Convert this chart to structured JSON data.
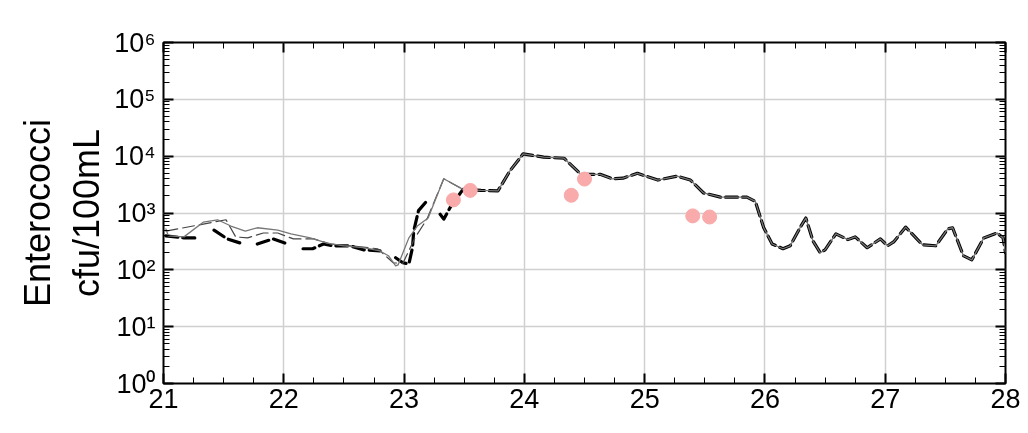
{
  "chart_data": {
    "type": "line",
    "ylabel": "Enterococci\ncfu/100mL",
    "log": "y",
    "grid": true,
    "xlim": [
      21,
      28
    ],
    "xticks": [
      21,
      22,
      23,
      24,
      25,
      26,
      27,
      28
    ],
    "ylim": [
      1,
      1000000
    ],
    "yticks": [
      {
        "value": 1,
        "label": "10⁰"
      },
      {
        "value": 10,
        "label": "10¹"
      },
      {
        "value": 100,
        "label": "10²"
      },
      {
        "value": 1000,
        "label": "10³"
      },
      {
        "value": 10000,
        "label": "10⁴"
      },
      {
        "value": 100000,
        "label": "10⁵"
      },
      {
        "value": 1000000,
        "label": "10⁶"
      }
    ],
    "series": [
      {
        "color": "#000000",
        "line_style": "dashed",
        "x": [
          21.02,
          21.17,
          21.29,
          21.35,
          21.42,
          21.53,
          21.64,
          21.71,
          21.78,
          21.91,
          22.03,
          22.1,
          22.16,
          22.24,
          22.33,
          22.41,
          22.55,
          22.66,
          22.8,
          22.86,
          22.93,
          22.99,
          23.04,
          23.07,
          23.08,
          23.12,
          23.18,
          23.25,
          23.3,
          23.33,
          23.39,
          23.49,
          23.64,
          23.78,
          23.88,
          23.99,
          24.16,
          24.33,
          24.47,
          24.63,
          24.73,
          24.82,
          24.94,
          25.11,
          25.27,
          25.38,
          25.49,
          25.63,
          25.85,
          25.92,
          25.99,
          26.06,
          26.15,
          26.21,
          26.3,
          26.34,
          26.4,
          26.46,
          26.5,
          26.59,
          26.69,
          26.75,
          26.85,
          26.96,
          27.02,
          27.07,
          27.17,
          27.31,
          27.42,
          27.52,
          27.56,
          27.65,
          27.72,
          27.82,
          27.93,
          27.98,
          28.0
        ],
        "values": [
          395,
          365,
          365,
          null,
          500,
          350,
          295,
          null,
          285,
          350,
          285,
          null,
          235,
          235,
          285,
          265,
          265,
          225,
          215,
          null,
          163,
          133,
          127,
          245,
          480,
          1100,
          1550,
          null,
          950,
          780,
          1330,
          2600,
          2500,
          2450,
          5500,
          11000,
          9600,
          9200,
          4800,
          4800,
          4000,
          4100,
          5000,
          3800,
          4450,
          3800,
          2250,
          1900,
          1900,
          1600,
          550,
          285,
          235,
          265,
          590,
          815,
          320,
          200,
          225,
          430,
          340,
          380,
          245,
          350,
          265,
          310,
          565,
          275,
          265,
          525,
          550,
          177,
          150,
          365,
          445,
          365,
          200
        ]
      },
      {
        "color": "#444444",
        "line_style": "dashed",
        "x": [
          21.02,
          21.52,
          21.6,
          21.7,
          21.83,
          21.95,
          22.08,
          22.25,
          22.39,
          22.55,
          22.78,
          22.91,
          22.99,
          23.09,
          23.19,
          23.33,
          23.49,
          23.64
        ],
        "values": [
          480,
          760,
          380,
          365,
          445,
          445,
          350,
          350,
          285,
          265,
          235,
          133,
          130,
          365,
          780,
          4000,
          2600,
          2500
        ]
      },
      {
        "color": "#777777",
        "line_style": "solid",
        "x": [
          21.02,
          21.04,
          21.17,
          21.33,
          21.45,
          21.56,
          21.68,
          21.78,
          21.95,
          22.06,
          22.22,
          22.36,
          22.5,
          22.66,
          22.8,
          22.87,
          22.93,
          22.95,
          23.04,
          23.11,
          23.2,
          23.33,
          23.49,
          23.64,
          23.78,
          23.88,
          23.99,
          24.16,
          24.33,
          24.47,
          24.63,
          24.73,
          24.82,
          24.94,
          25.11,
          25.27,
          25.38,
          25.49,
          25.63,
          25.85,
          25.92,
          25.99,
          26.06,
          26.15,
          26.21,
          26.3,
          26.34,
          26.4,
          26.46,
          26.5,
          26.59,
          26.69,
          26.75,
          26.85,
          26.96,
          27.02,
          27.07,
          27.17,
          27.31,
          27.42,
          27.52,
          27.56,
          27.65,
          27.72,
          27.82,
          27.93,
          27.98,
          28.0
        ],
        "values": [
          525,
          395,
          380,
          690,
          760,
          590,
          480,
          550,
          500,
          430,
          365,
          295,
          265,
          245,
          215,
          177,
          117,
          122,
          365,
          590,
          815,
          4000,
          2600,
          2500,
          2450,
          5500,
          11000,
          9600,
          9200,
          4800,
          4800,
          4000,
          4100,
          5000,
          3800,
          4450,
          3800,
          2250,
          1900,
          1900,
          1600,
          550,
          285,
          235,
          265,
          590,
          815,
          320,
          200,
          225,
          430,
          340,
          380,
          245,
          350,
          265,
          310,
          565,
          275,
          265,
          525,
          550,
          177,
          150,
          365,
          445,
          365,
          200
        ]
      },
      {
        "type": "scatter",
        "color": "#f9aaaa",
        "marker": "circle",
        "x": [
          23.41,
          23.55,
          24.39,
          24.5,
          25.4,
          25.54
        ],
        "values": [
          1700,
          2500,
          2050,
          3950,
          890,
          850
        ]
      }
    ]
  }
}
